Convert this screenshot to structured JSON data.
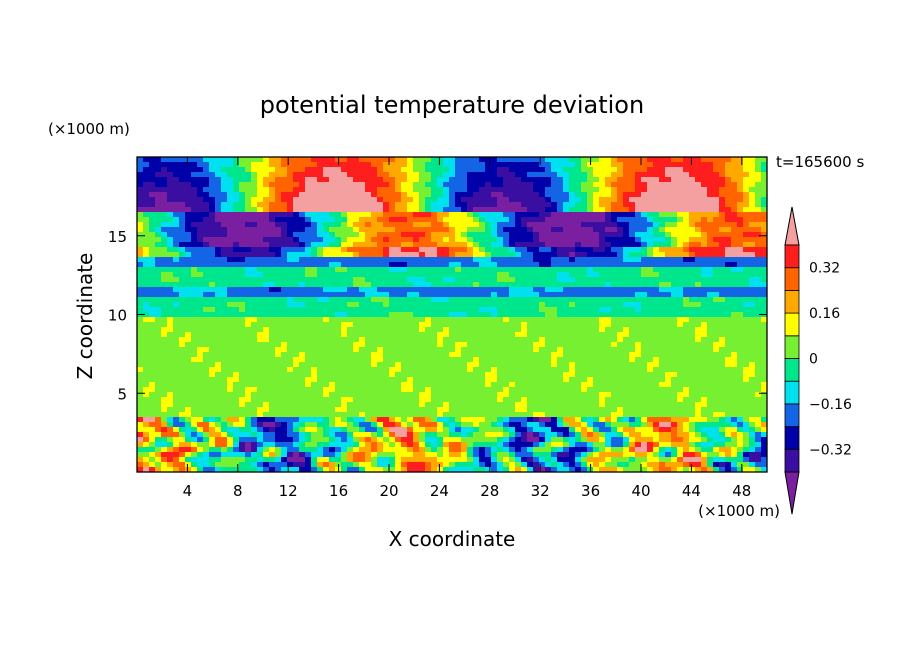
{
  "chart_data": {
    "type": "heatmap",
    "title": "potential temperature deviation",
    "xlabel": "X coordinate",
    "ylabel": "Z coordinate",
    "x_unit": "(×1000 m)",
    "y_unit": "(×1000 m)",
    "time_label": "t=165600 s",
    "xlim": [
      0,
      50
    ],
    "ylim": [
      0,
      20
    ],
    "x_ticks": [
      4,
      8,
      12,
      16,
      20,
      24,
      28,
      32,
      36,
      40,
      44,
      48
    ],
    "y_ticks": [
      5,
      10,
      15
    ],
    "colorbar": {
      "levels": [
        -0.4,
        -0.32,
        -0.24,
        -0.16,
        -0.08,
        0,
        0.08,
        0.16,
        0.24,
        0.32,
        0.4
      ],
      "tick_labels": [
        "0.32",
        "0.16",
        "0",
        "−0.16",
        "−0.32"
      ],
      "tick_values": [
        0.32,
        0.16,
        0,
        -0.16,
        -0.32
      ],
      "colors": [
        "#7a1fa0",
        "#3a0ea0",
        "#0000a8",
        "#1464e6",
        "#00e1f0",
        "#00e68c",
        "#78f032",
        "#ffff00",
        "#ffa800",
        "#ff6400",
        "#ff1e1e",
        "#f5a0a0"
      ]
    }
  }
}
